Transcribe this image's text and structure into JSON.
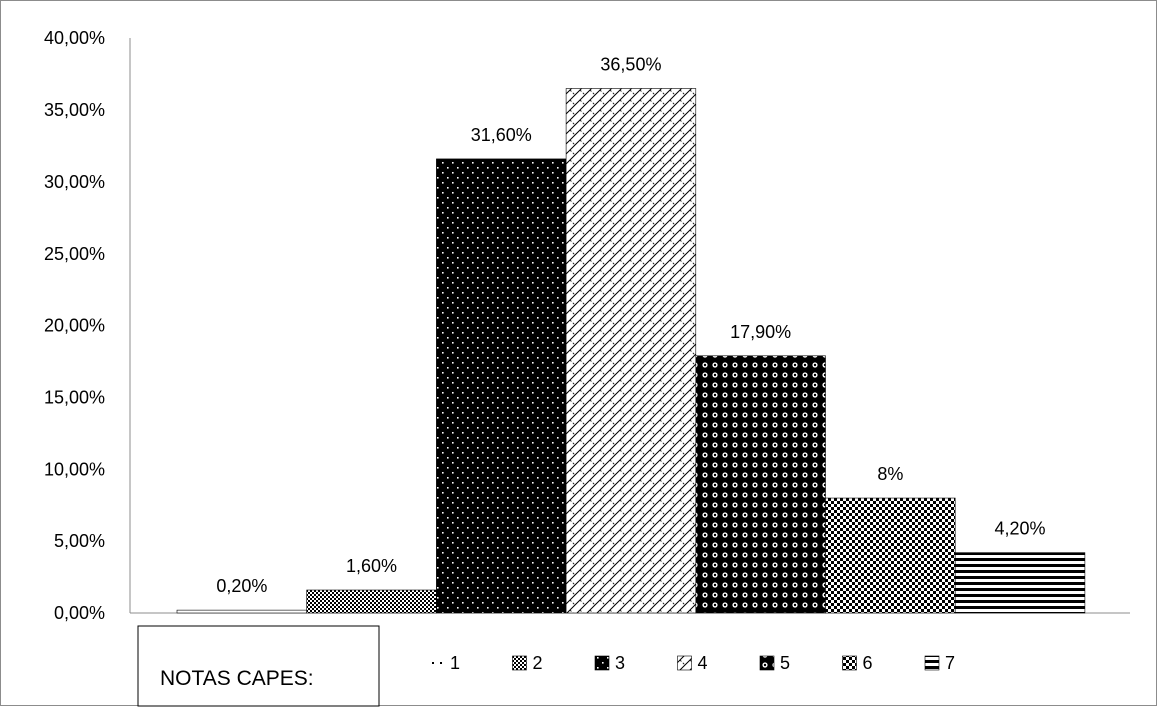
{
  "chart_data": {
    "type": "bar",
    "categories": [
      "1",
      "2",
      "3",
      "4",
      "5",
      "6",
      "7"
    ],
    "values": [
      0.2,
      1.6,
      31.6,
      36.5,
      17.9,
      8,
      4.2
    ],
    "data_labels": [
      "0,20%",
      "1,60%",
      "31,60%",
      "36,50%",
      "17,90%",
      "8%",
      "4,20%"
    ],
    "y_ticks": [
      "0,00%",
      "5,00%",
      "10,00%",
      "15,00%",
      "20,00%",
      "25,00%",
      "30,00%",
      "35,00%",
      "40,00%"
    ],
    "ylim": [
      0,
      40
    ],
    "grid": false,
    "legend": {
      "title": "NOTAS CAPES:",
      "placement": "bottom",
      "entries": [
        "1",
        "2",
        "3",
        "4",
        "5",
        "6",
        "7"
      ]
    },
    "patterns": [
      "sparse-dots",
      "fine-check",
      "black-white-dots",
      "diagonal-hatch",
      "circle-lattice",
      "small-check",
      "horizontal-stripes"
    ],
    "colors": {
      "ink": "#000000",
      "background": "#ffffff",
      "axis": "#8c8c8c"
    }
  }
}
